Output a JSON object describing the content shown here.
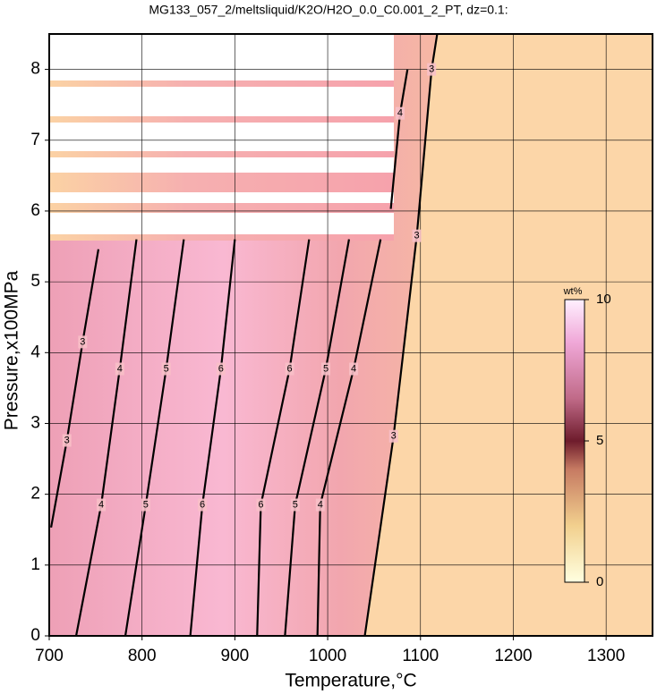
{
  "chart_data": {
    "type": "contour",
    "title": "MG133_057_2/meltsliquid/K2O/H2O_0.0_C0.001_2_PT, dz=0.1:",
    "x_label": "Temperature,°C",
    "y_label": "Pressure,x100MPa",
    "xlim": [
      700,
      1350
    ],
    "ylim": [
      0,
      8.5
    ],
    "xticks": [
      700,
      800,
      900,
      1000,
      1100,
      1200,
      1300
    ],
    "yticks": [
      0,
      1,
      2,
      3,
      4,
      5,
      6,
      7,
      8
    ],
    "grid": true,
    "contours": [
      {
        "level": 3,
        "x": [
          702,
          719,
          736,
          753
        ],
        "y": [
          1.53,
          2.76,
          4.15,
          5.46
        ]
      },
      {
        "level": 4,
        "x": [
          729,
          756,
          776,
          794
        ],
        "y": [
          0,
          1.85,
          3.77,
          5.6
        ]
      },
      {
        "level": 5,
        "x": [
          782,
          804,
          826,
          845
        ],
        "y": [
          0,
          1.85,
          3.77,
          5.6
        ]
      },
      {
        "level": 6,
        "x": [
          852,
          865,
          885,
          900
        ],
        "y": [
          0,
          1.85,
          3.77,
          5.6
        ]
      },
      {
        "level": 6,
        "x": [
          924,
          928,
          959,
          980
        ],
        "y": [
          0,
          1.85,
          3.77,
          5.6
        ]
      },
      {
        "level": 5,
        "x": [
          954,
          965,
          998,
          1023
        ],
        "y": [
          0,
          1.85,
          3.77,
          5.6
        ]
      },
      {
        "level": 4,
        "x": [
          989,
          992,
          1028,
          1057
        ],
        "y": [
          0,
          1.85,
          3.77,
          5.6
        ]
      },
      {
        "level": 3,
        "x": [
          1040,
          1071,
          1096,
          1112,
          1118
        ],
        "y": [
          0,
          2.82,
          5.65,
          8,
          8.5
        ]
      },
      {
        "level": 4,
        "x": [
          1068,
          1078,
          1086
        ],
        "y": [
          6.03,
          7.38,
          8
        ]
      }
    ],
    "colorbar": {
      "label": "wt%",
      "lim": [
        0,
        10
      ],
      "ticks": [
        0,
        5,
        10
      ]
    }
  }
}
